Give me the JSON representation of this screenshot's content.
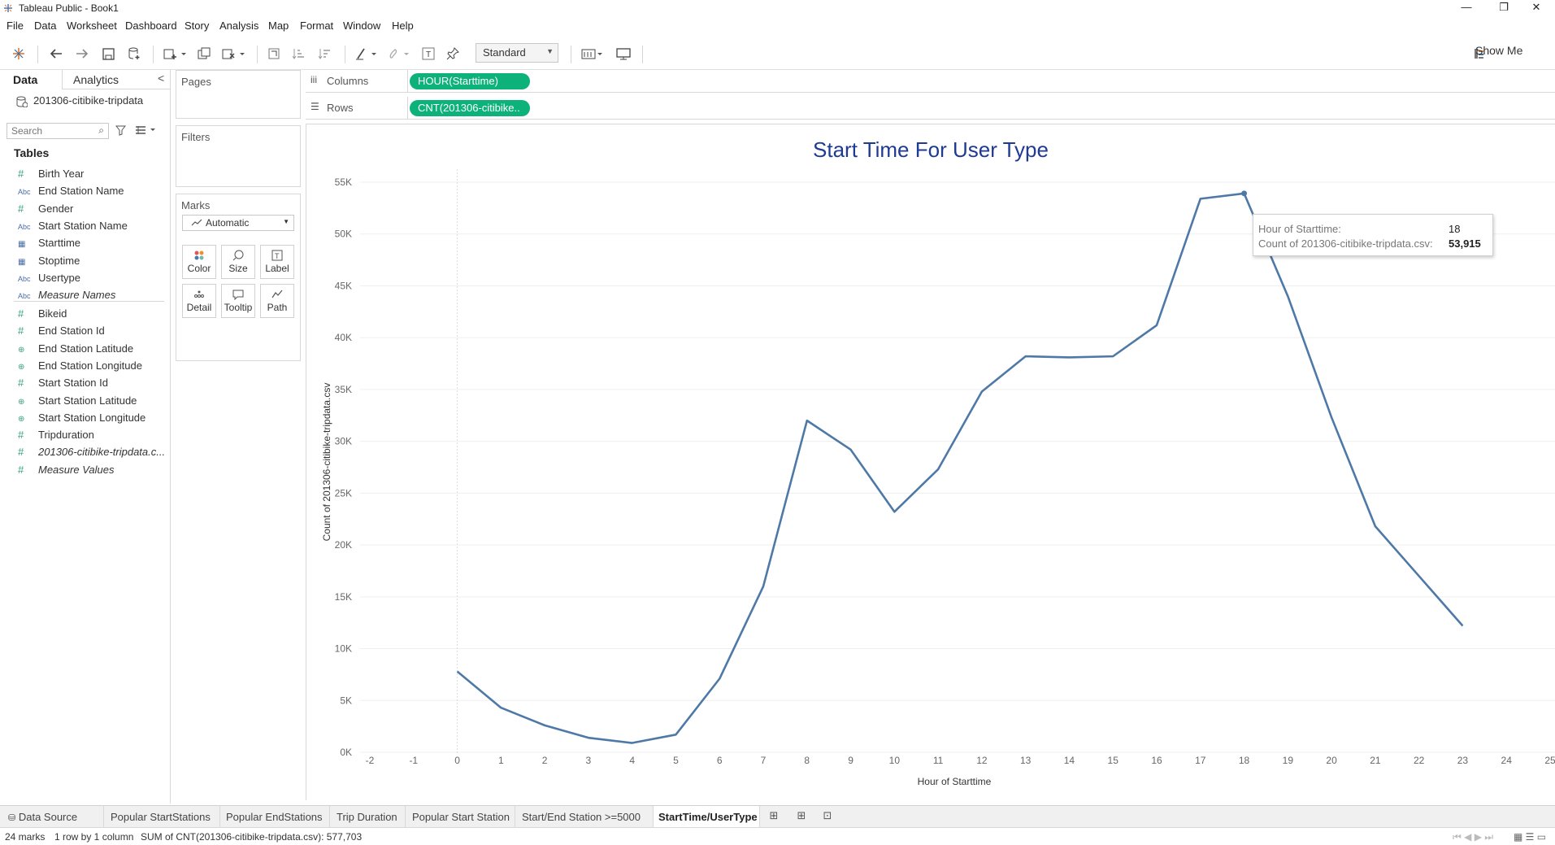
{
  "app": {
    "title": "Tableau Public - Book1",
    "window_controls": [
      "—",
      "❐",
      "✕"
    ]
  },
  "menu": [
    "File",
    "Data",
    "Worksheet",
    "Dashboard",
    "Story",
    "Analysis",
    "Map",
    "Format",
    "Window",
    "Help"
  ],
  "toolbar": {
    "fit_select": "Standard",
    "show_me": "Show Me"
  },
  "left_pane": {
    "tab_data": "Data",
    "tab_analytics": "Analytics",
    "collapse": "<",
    "datasource": "201306-citibike-tripdata",
    "search_placeholder": "Search",
    "tables_heading": "Tables",
    "dimensions": [
      {
        "icon": "#",
        "type": "hash",
        "label": "Birth Year"
      },
      {
        "icon": "Abc",
        "type": "abc",
        "label": "End Station Name"
      },
      {
        "icon": "#",
        "type": "hash",
        "label": "Gender"
      },
      {
        "icon": "Abc",
        "type": "abc",
        "label": "Start Station Name"
      },
      {
        "icon": "▦",
        "type": "cal",
        "label": "Starttime"
      },
      {
        "icon": "▦",
        "type": "cal",
        "label": "Stoptime"
      },
      {
        "icon": "Abc",
        "type": "abc",
        "label": "Usertype"
      },
      {
        "icon": "Abc",
        "type": "abc",
        "label": "Measure Names",
        "italic": true
      }
    ],
    "measures": [
      {
        "icon": "#",
        "type": "hash",
        "label": "Bikeid"
      },
      {
        "icon": "#",
        "type": "hash",
        "label": "End Station Id"
      },
      {
        "icon": "⊕",
        "type": "geo",
        "label": "End Station Latitude"
      },
      {
        "icon": "⊕",
        "type": "geo",
        "label": "End Station Longitude"
      },
      {
        "icon": "#",
        "type": "hash",
        "label": "Start Station Id"
      },
      {
        "icon": "⊕",
        "type": "geo",
        "label": "Start Station Latitude"
      },
      {
        "icon": "⊕",
        "type": "geo",
        "label": "Start Station Longitude"
      },
      {
        "icon": "#",
        "type": "hash",
        "label": "Tripduration"
      },
      {
        "icon": "#",
        "type": "hash",
        "label": "201306-citibike-tripdata.c...",
        "italic": true
      },
      {
        "icon": "#",
        "type": "hash",
        "label": "Measure Values",
        "italic": true
      }
    ]
  },
  "cards": {
    "pages": "Pages",
    "filters": "Filters",
    "marks": "Marks",
    "marks_type": "Automatic",
    "mark_buttons": [
      "Color",
      "Size",
      "Label",
      "Detail",
      "Tooltip",
      "Path"
    ]
  },
  "shelves": {
    "columns_label": "Columns",
    "columns_pill": "HOUR(Starttime)",
    "rows_label": "Rows",
    "rows_pill": "CNT(201306-citibike.."
  },
  "tooltip": {
    "k1": "Hour of Starttime:",
    "v1": "18",
    "k2": "Count of 201306-citibike-tripdata.csv:",
    "v2": "53,915"
  },
  "sheet_tabs": [
    "Data Source",
    "Popular  StartStations",
    "Popular  EndStations",
    "Trip Duration",
    "Popular Start Station",
    "Start/End Station >=5000",
    "StartTime/UserType"
  ],
  "status": {
    "marks": "24 marks",
    "rows": "1 row by 1 column",
    "sum": "SUM of CNT(201306-citibike-tripdata.csv): 577,703"
  },
  "colors": {
    "line": "#4e79a7",
    "title": "#1f3a93",
    "pill": "#0db27a"
  },
  "chart_data": {
    "type": "line",
    "title": "Start Time For User Type",
    "xlabel": "Hour of Starttime",
    "ylabel": "Count of 201306-citibike-tripdata.csv",
    "xlim": [
      -2,
      25
    ],
    "ylim": [
      0,
      55000
    ],
    "x_ticks": [
      -2,
      -1,
      0,
      1,
      2,
      3,
      4,
      5,
      6,
      7,
      8,
      9,
      10,
      11,
      12,
      13,
      14,
      15,
      16,
      17,
      18,
      19,
      20,
      21,
      22,
      23,
      24,
      25
    ],
    "y_ticks": [
      0,
      5000,
      10000,
      15000,
      20000,
      25000,
      30000,
      35000,
      40000,
      45000,
      50000,
      55000
    ],
    "y_tick_labels": [
      "0K",
      "5K",
      "10K",
      "15K",
      "20K",
      "25K",
      "30K",
      "35K",
      "40K",
      "45K",
      "50K",
      "55K"
    ],
    "x": [
      0,
      1,
      2,
      3,
      4,
      5,
      6,
      7,
      8,
      9,
      10,
      11,
      12,
      13,
      14,
      15,
      16,
      17,
      18,
      19,
      20,
      21,
      22,
      23
    ],
    "values": [
      7800,
      4300,
      2600,
      1400,
      900,
      1700,
      7100,
      16000,
      32000,
      29200,
      23200,
      27300,
      34800,
      38200,
      38100,
      38200,
      41200,
      53400,
      53915,
      44000,
      32300,
      21800,
      17000,
      12200
    ],
    "highlight_x": 18
  }
}
